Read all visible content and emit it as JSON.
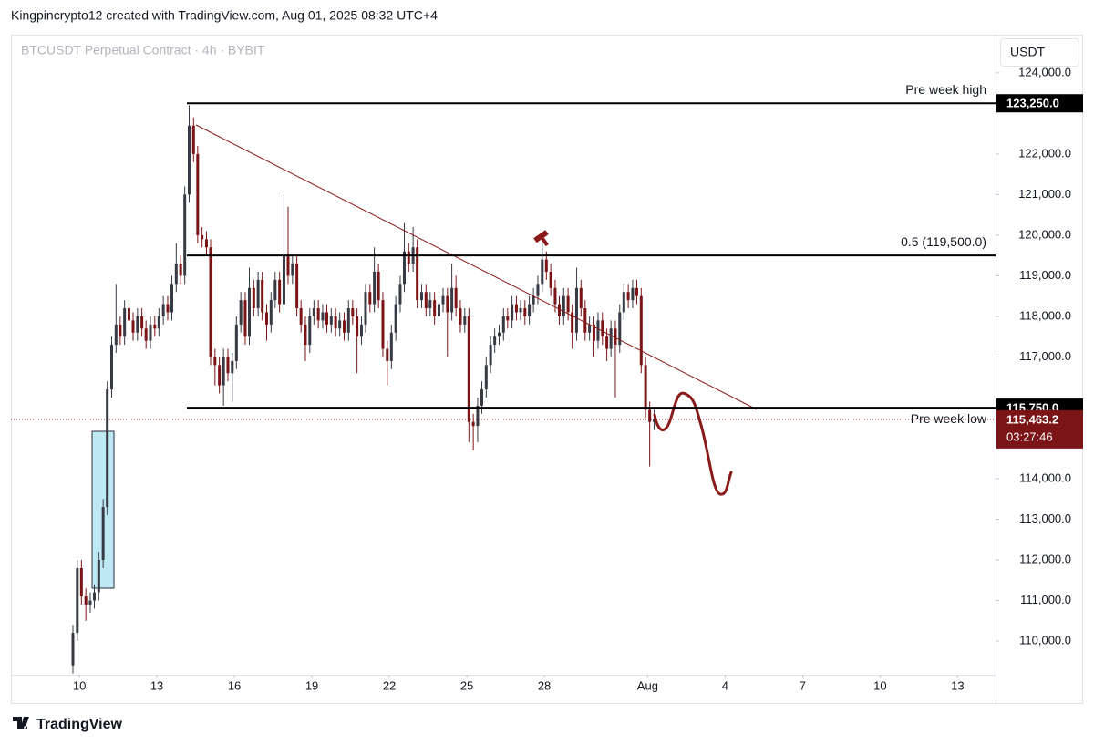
{
  "header": "Kingpincrypto12 created with TradingView.com, Aug 01, 2025 08:32 UTC+4",
  "symbol_line": "BTCUSDT Perpetual Contract · 4h · BYBIT",
  "currency": "USDT",
  "brand": "TradingView",
  "chart_data": {
    "type": "candlestick",
    "up_color": "#363a45",
    "down_color": "#7b1416",
    "xlim": [
      -2.65,
      35.47
    ],
    "ylim": [
      109170,
      124940
    ],
    "xticks": [
      {
        "value": 0,
        "label": "10"
      },
      {
        "value": 3,
        "label": "13"
      },
      {
        "value": 6,
        "label": "16"
      },
      {
        "value": 9,
        "label": "19"
      },
      {
        "value": 12,
        "label": "22"
      },
      {
        "value": 15,
        "label": "25"
      },
      {
        "value": 18,
        "label": "28"
      },
      {
        "value": 22,
        "label": "Aug"
      },
      {
        "value": 25,
        "label": "4"
      },
      {
        "value": 28,
        "label": "7"
      },
      {
        "value": 31,
        "label": "10"
      },
      {
        "value": 34,
        "label": "13"
      }
    ],
    "yticks": [
      {
        "value": 110000,
        "label": "110,000.0"
      },
      {
        "value": 111000,
        "label": "111,000.0"
      },
      {
        "value": 112000,
        "label": "112,000.0"
      },
      {
        "value": 113000,
        "label": "113,000.0"
      },
      {
        "value": 114000,
        "label": "114,000.0"
      },
      {
        "value": 117000,
        "label": "117,000.0"
      },
      {
        "value": 118000,
        "label": "118,000.0"
      },
      {
        "value": 119000,
        "label": "119,000.0"
      },
      {
        "value": 120000,
        "label": "120,000.0"
      },
      {
        "value": 121000,
        "label": "121,000.0"
      },
      {
        "value": 122000,
        "label": "122,000.0"
      },
      {
        "value": 124000,
        "label": "124,000.0"
      }
    ],
    "levels": [
      {
        "label": "Pre week high",
        "value": 123250,
        "value_label": "123,250.0"
      },
      {
        "label": "0.5 (119,500.0)",
        "value": 119500
      },
      {
        "label": "Pre week low",
        "value": 115750,
        "value_label": "115,750.0"
      }
    ],
    "last": {
      "value": 115463.2,
      "label": "115,463.2",
      "countdown": "03:27:46"
    },
    "x": [
      -0.25,
      -0.08,
      0.08,
      0.25,
      0.42,
      0.58,
      0.75,
      0.92,
      1.08,
      1.25,
      1.42,
      1.58,
      1.75,
      1.92,
      2.08,
      2.25,
      2.42,
      2.58,
      2.75,
      2.92,
      3.08,
      3.25,
      3.42,
      3.58,
      3.75,
      3.92,
      4.08,
      4.25,
      4.42,
      4.58,
      4.75,
      4.92,
      5.08,
      5.25,
      5.42,
      5.58,
      5.75,
      5.92,
      6.08,
      6.25,
      6.42,
      6.58,
      6.75,
      6.92,
      7.08,
      7.25,
      7.42,
      7.58,
      7.75,
      7.92,
      8.08,
      8.25,
      8.42,
      8.58,
      8.75,
      8.92,
      9.08,
      9.25,
      9.42,
      9.58,
      9.75,
      9.92,
      10.08,
      10.25,
      10.42,
      10.58,
      10.75,
      10.92,
      11.08,
      11.25,
      11.42,
      11.58,
      11.75,
      11.92,
      12.08,
      12.25,
      12.42,
      12.58,
      12.75,
      12.92,
      13.08,
      13.25,
      13.42,
      13.58,
      13.75,
      13.92,
      14.08,
      14.25,
      14.42,
      14.58,
      14.75,
      14.92,
      15.08,
      15.25,
      15.42,
      15.58,
      15.75,
      15.92,
      16.08,
      16.25,
      16.42,
      16.58,
      16.75,
      16.92,
      17.08,
      17.25,
      17.42,
      17.58,
      17.75,
      17.92,
      18.08,
      18.25,
      18.42,
      18.58,
      18.75,
      18.92,
      19.08,
      19.25,
      19.42,
      19.58,
      19.75,
      19.92,
      20.08,
      20.25,
      20.42,
      20.58,
      20.75,
      20.92,
      21.08,
      21.25,
      21.42,
      21.58,
      21.75,
      21.92,
      22.08,
      22.25
    ],
    "open": [
      109400,
      110200,
      111800,
      111100,
      110900,
      111000,
      111200,
      112000,
      113300,
      116200,
      117300,
      117800,
      117500,
      118200,
      117900,
      117600,
      118000,
      117700,
      117400,
      117800,
      117700,
      118000,
      118300,
      118100,
      118800,
      119300,
      119000,
      121000,
      122700,
      122000,
      120000,
      119900,
      119700,
      117000,
      116800,
      116300,
      117000,
      116600,
      116900,
      117800,
      118400,
      117500,
      118700,
      118200,
      118900,
      118100,
      117800,
      118400,
      118900,
      118300,
      119500,
      119000,
      119300,
      118200,
      117800,
      117300,
      118000,
      118200,
      117900,
      118100,
      117800,
      118000,
      117700,
      117900,
      117600,
      118200,
      118000,
      117500,
      117800,
      118600,
      118300,
      119100,
      118400,
      117200,
      116900,
      117600,
      118300,
      118800,
      119600,
      119300,
      119700,
      118400,
      118600,
      118200,
      118400,
      118000,
      118300,
      118500,
      118100,
      118700,
      118200,
      117800,
      118000,
      115400,
      115300,
      115800,
      116200,
      116800,
      117300,
      117500,
      117600,
      118000,
      117900,
      118300,
      118100,
      118200,
      118000,
      118300,
      118500,
      118800,
      119400,
      119100,
      118700,
      118300,
      118000,
      118500,
      118100,
      117600,
      118700,
      118200,
      117600,
      117800,
      117400,
      117900,
      117500,
      117200,
      117700,
      117300,
      118100,
      118600,
      118400,
      118700,
      118500,
      116800,
      115700,
      115400
    ],
    "high": [
      110400,
      112000,
      112000,
      111300,
      111200,
      111400,
      112200,
      113500,
      116400,
      117500,
      118800,
      118000,
      118400,
      118400,
      118100,
      118200,
      118200,
      117900,
      118000,
      118000,
      118200,
      118500,
      118500,
      119000,
      119800,
      119500,
      121200,
      123200,
      122900,
      122200,
      120200,
      120100,
      119900,
      117200,
      117000,
      117200,
      117200,
      117100,
      118000,
      118600,
      118600,
      119200,
      118900,
      119100,
      119100,
      118300,
      118600,
      119100,
      119100,
      121000,
      120700,
      119500,
      119500,
      118400,
      118000,
      118200,
      118400,
      118400,
      118300,
      118300,
      118200,
      118200,
      118100,
      118100,
      118400,
      118400,
      118200,
      118000,
      118800,
      118800,
      119700,
      119300,
      118600,
      117400,
      117800,
      118500,
      119000,
      120300,
      119800,
      120200,
      119900,
      118800,
      118800,
      118600,
      118600,
      118500,
      118700,
      118700,
      119300,
      119000,
      118400,
      118200,
      118200,
      115600,
      116000,
      116400,
      117000,
      117500,
      117700,
      117800,
      118200,
      118200,
      118500,
      118500,
      118400,
      118400,
      118500,
      118700,
      119000,
      119800,
      119600,
      119300,
      118900,
      118500,
      118700,
      118700,
      118300,
      119200,
      118900,
      118400,
      118000,
      118000,
      118100,
      118100,
      117700,
      117900,
      117900,
      118300,
      118800,
      118800,
      118900,
      118900,
      118700,
      117000,
      115900,
      115700
    ],
    "low": [
      109200,
      110000,
      110900,
      110500,
      110700,
      110800,
      111000,
      111800,
      113100,
      116000,
      117100,
      117300,
      117300,
      117700,
      117400,
      117400,
      117500,
      117200,
      117200,
      117500,
      117500,
      117800,
      117900,
      117900,
      118600,
      118800,
      118800,
      120800,
      121800,
      119800,
      119700,
      119500,
      116800,
      116300,
      116100,
      115800,
      116400,
      115900,
      116700,
      117600,
      117300,
      117300,
      118000,
      118000,
      117900,
      117400,
      117600,
      118200,
      118100,
      118100,
      118800,
      118800,
      118000,
      117600,
      116900,
      117100,
      117800,
      117700,
      117700,
      117600,
      117600,
      117500,
      117500,
      117400,
      117400,
      117800,
      116600,
      117300,
      117600,
      118100,
      118100,
      118200,
      117000,
      116300,
      116700,
      117400,
      118100,
      118600,
      119100,
      119100,
      118200,
      118200,
      118000,
      118000,
      117800,
      117800,
      118100,
      117000,
      117900,
      118000,
      117600,
      117600,
      114900,
      114700,
      114900,
      115600,
      116000,
      116600,
      117100,
      117300,
      117400,
      117700,
      117700,
      117900,
      117900,
      117800,
      117800,
      118100,
      118300,
      118600,
      118900,
      118500,
      118100,
      117800,
      117800,
      117900,
      117200,
      117400,
      118000,
      117400,
      117400,
      117000,
      117200,
      117300,
      116900,
      117000,
      116000,
      117100,
      117900,
      118200,
      118200,
      118300,
      116600,
      115500,
      114300,
      115200
    ],
    "close": [
      110200,
      111800,
      111100,
      110900,
      111000,
      111200,
      112000,
      113300,
      116200,
      117300,
      117800,
      117500,
      118200,
      117900,
      117600,
      118000,
      117700,
      117400,
      117800,
      117700,
      118000,
      118300,
      118100,
      118800,
      119300,
      119000,
      121000,
      122700,
      122000,
      120000,
      119900,
      119700,
      117000,
      116800,
      116300,
      117000,
      116600,
      116900,
      117800,
      118400,
      117500,
      118700,
      118200,
      118900,
      118100,
      117800,
      118400,
      118900,
      118300,
      119500,
      119000,
      119300,
      118200,
      117800,
      117300,
      118000,
      118200,
      117900,
      118100,
      117800,
      118000,
      117700,
      117900,
      117600,
      118200,
      118000,
      117500,
      117800,
      118600,
      118300,
      119100,
      118400,
      117200,
      116900,
      117600,
      118300,
      118800,
      119600,
      119300,
      119700,
      118400,
      118600,
      118200,
      118400,
      118000,
      118300,
      118500,
      118100,
      118700,
      118200,
      117800,
      118000,
      115400,
      115300,
      115800,
      116200,
      116800,
      117300,
      117500,
      117600,
      118000,
      117900,
      118300,
      118100,
      118200,
      118000,
      118300,
      118500,
      118800,
      119400,
      119100,
      118700,
      118300,
      118000,
      118500,
      118100,
      117600,
      118700,
      118200,
      117600,
      117800,
      117400,
      117900,
      117500,
      117200,
      117700,
      117300,
      118100,
      118600,
      118400,
      118700,
      118500,
      116800,
      115700,
      115400,
      115463.2
    ]
  }
}
